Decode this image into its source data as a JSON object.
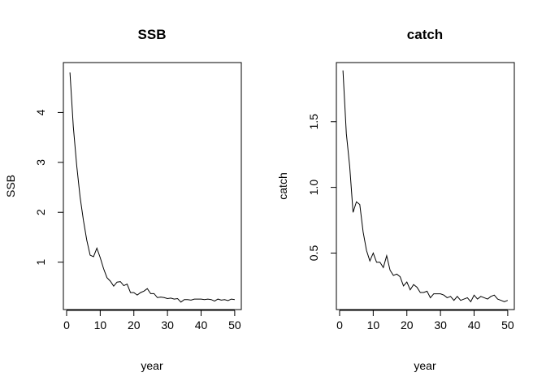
{
  "chart_data": [
    {
      "type": "line",
      "title": "SSB",
      "xlabel": "year",
      "ylabel": "SSB",
      "xlim": [
        -0.96,
        51.96
      ],
      "ylim": [
        0.05,
        5.0
      ],
      "xticks": [
        0,
        10,
        20,
        30,
        40,
        50
      ],
      "yticks": [
        1,
        2,
        3,
        4
      ],
      "grid": false,
      "legend": "none",
      "color": "#000000",
      "series": [
        {
          "x": [
            1,
            2,
            3,
            4,
            5,
            6,
            7,
            8,
            9,
            10,
            11,
            12,
            13,
            14,
            15,
            16,
            17,
            18,
            19,
            20,
            21,
            22,
            23,
            24,
            25,
            26,
            27,
            28,
            29,
            30,
            31,
            32,
            33,
            34,
            35,
            36,
            37,
            38,
            39,
            40,
            41,
            42,
            43,
            44,
            45,
            46,
            47,
            48,
            49,
            50
          ],
          "values": [
            4.8,
            3.71,
            2.94,
            2.31,
            1.84,
            1.44,
            1.14,
            1.11,
            1.28,
            1.09,
            0.87,
            0.69,
            0.62,
            0.52,
            0.6,
            0.61,
            0.53,
            0.56,
            0.39,
            0.39,
            0.34,
            0.39,
            0.42,
            0.47,
            0.37,
            0.37,
            0.29,
            0.3,
            0.29,
            0.27,
            0.28,
            0.26,
            0.27,
            0.2,
            0.25,
            0.25,
            0.24,
            0.26,
            0.26,
            0.26,
            0.25,
            0.26,
            0.25,
            0.22,
            0.26,
            0.24,
            0.25,
            0.23,
            0.26,
            0.25
          ]
        }
      ]
    },
    {
      "type": "line",
      "title": "catch",
      "xlabel": "year",
      "ylabel": "catch",
      "xlim": [
        -0.96,
        51.96
      ],
      "ylim": [
        0.07,
        1.95
      ],
      "xticks": [
        0,
        10,
        20,
        30,
        40,
        50
      ],
      "yticks": [
        0.5,
        1.0,
        1.5
      ],
      "ytick_labels": [
        "0.5",
        "1.0",
        "1.5"
      ],
      "grid": false,
      "legend": "none",
      "color": "#000000",
      "series": [
        {
          "x": [
            1,
            2,
            3,
            4,
            5,
            6,
            7,
            8,
            9,
            10,
            11,
            12,
            13,
            14,
            15,
            16,
            17,
            18,
            19,
            20,
            21,
            22,
            23,
            24,
            25,
            26,
            27,
            28,
            29,
            30,
            31,
            32,
            33,
            34,
            35,
            36,
            37,
            38,
            39,
            40,
            41,
            42,
            43,
            44,
            45,
            46,
            47,
            48,
            49,
            50
          ],
          "values": [
            1.89,
            1.41,
            1.16,
            0.81,
            0.89,
            0.87,
            0.66,
            0.52,
            0.44,
            0.5,
            0.43,
            0.43,
            0.39,
            0.48,
            0.37,
            0.33,
            0.34,
            0.32,
            0.25,
            0.28,
            0.22,
            0.26,
            0.24,
            0.2,
            0.2,
            0.21,
            0.16,
            0.19,
            0.19,
            0.19,
            0.18,
            0.16,
            0.17,
            0.14,
            0.17,
            0.14,
            0.15,
            0.16,
            0.13,
            0.18,
            0.15,
            0.17,
            0.16,
            0.15,
            0.17,
            0.18,
            0.15,
            0.14,
            0.13,
            0.14
          ]
        }
      ]
    }
  ]
}
